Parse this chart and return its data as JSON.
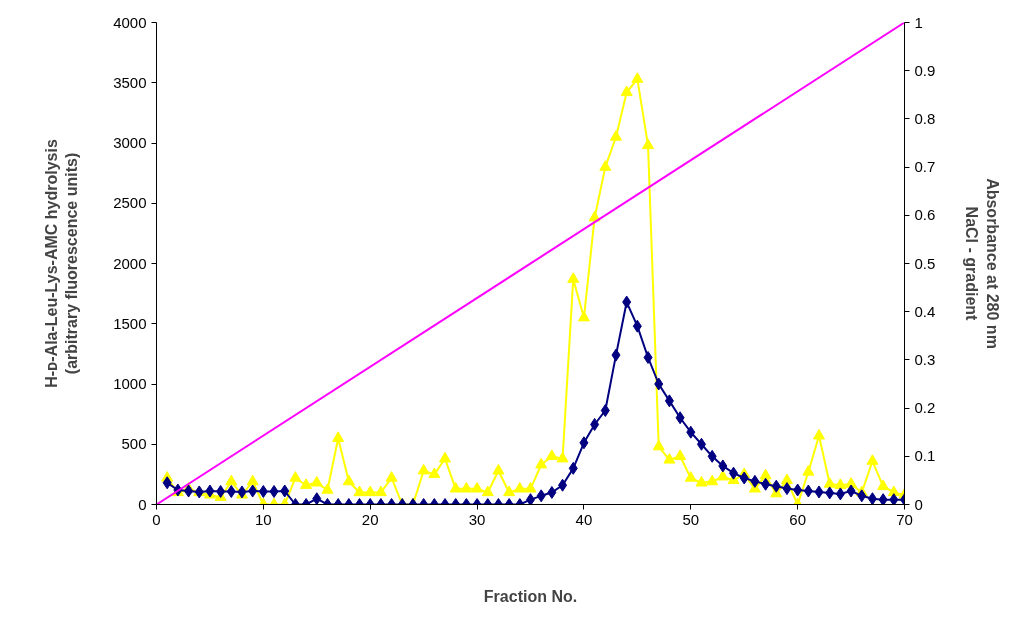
{
  "chart_data": {
    "type": "line",
    "xlabel": "Fraction No.",
    "ylabel": "H-ᴅ-Ala-Leu-Lys-AMC hydrolysis\n(arbitrary fluorescence units)",
    "y2label": "Absorbance at 280 nm\nNaCl - gradient",
    "x": [
      1,
      2,
      3,
      4,
      5,
      6,
      7,
      8,
      9,
      10,
      11,
      12,
      13,
      14,
      15,
      16,
      17,
      18,
      19,
      20,
      21,
      22,
      23,
      24,
      25,
      26,
      27,
      28,
      29,
      30,
      31,
      32,
      33,
      34,
      35,
      36,
      37,
      38,
      39,
      40,
      41,
      42,
      43,
      44,
      45,
      46,
      47,
      48,
      49,
      50,
      51,
      52,
      53,
      54,
      55,
      56,
      57,
      58,
      59,
      60,
      61,
      62,
      63,
      64,
      65,
      66,
      67,
      68,
      69,
      70
    ],
    "xlim": [
      0,
      70
    ],
    "xticks": [
      0,
      10,
      20,
      30,
      40,
      50,
      60,
      70
    ],
    "ylim": [
      0,
      4000
    ],
    "yticks": [
      0,
      500,
      1000,
      1500,
      2000,
      2500,
      3000,
      3500,
      4000
    ],
    "y2lim": [
      0,
      1
    ],
    "y2ticks": [
      0,
      0.1,
      0.2,
      0.3,
      0.4,
      0.5,
      0.6,
      0.7,
      0.8,
      0.9,
      1
    ],
    "grid": false,
    "series": [
      {
        "color": "#ffff00",
        "marker": "triangle",
        "values": [
          220,
          100,
          130,
          100,
          80,
          60,
          190,
          80,
          190,
          0,
          0,
          0,
          220,
          160,
          180,
          120,
          550,
          190,
          100,
          100,
          100,
          220,
          0,
          0,
          280,
          250,
          380,
          130,
          130,
          130,
          100,
          280,
          100,
          130,
          130,
          330,
          400,
          380,
          1870,
          1550,
          2380,
          2800,
          3050,
          3420,
          3530,
          2980,
          480,
          370,
          400,
          220,
          180,
          190,
          230,
          200,
          250,
          130,
          240,
          90,
          200,
          0,
          270,
          570,
          170,
          160,
          170,
          100,
          360,
          150,
          100,
          80
        ]
      },
      {
        "color": "#000080",
        "marker": "diamond",
        "axis": "y2",
        "values": [
          0.045,
          0.03,
          0.028,
          0.026,
          0.028,
          0.027,
          0.027,
          0.026,
          0.028,
          0.027,
          0.027,
          0.028,
          0,
          0,
          0.012,
          0,
          0,
          0,
          0,
          0,
          0,
          0,
          0,
          0,
          0,
          0,
          0,
          0,
          0,
          0,
          0,
          0,
          0,
          0,
          0.01,
          0.018,
          0.025,
          0.04,
          0.075,
          0.128,
          0.166,
          0.195,
          0.31,
          0.42,
          0.37,
          0.305,
          0.25,
          0.215,
          0.18,
          0.15,
          0.125,
          0.1,
          0.08,
          0.065,
          0.055,
          0.048,
          0.042,
          0.038,
          0.033,
          0.03,
          0.028,
          0.026,
          0.024,
          0.022,
          0.028,
          0.018,
          0.012,
          0.01,
          0.01,
          0.01
        ]
      },
      {
        "color": "#ff00ff",
        "marker": "none",
        "axis": "y2",
        "x": [
          0,
          70
        ],
        "values": [
          0,
          1
        ]
      }
    ]
  }
}
